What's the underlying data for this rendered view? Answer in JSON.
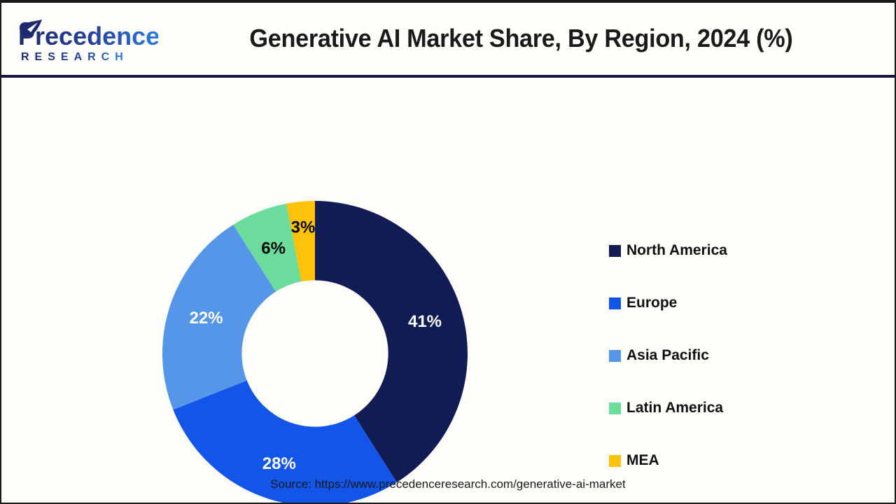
{
  "header": {
    "logo": {
      "brand": "Precedence",
      "sub_brand": "RESEARCH"
    },
    "title": "Generative AI Market Share, By Region, 2024 (%)"
  },
  "chart_data": {
    "type": "pie",
    "subtype": "donut",
    "title": "Generative AI Market Share, By Region, 2024 (%)",
    "unit": "percent",
    "categories": [
      "North America",
      "Europe",
      "Asia Pacific",
      "Latin America",
      "MEA"
    ],
    "values": [
      41,
      28,
      22,
      6,
      3
    ],
    "labels": [
      "41%",
      "28%",
      "22%",
      "6%",
      "3%"
    ],
    "colors": [
      "#111B54",
      "#1355E8",
      "#5596E8",
      "#6BDC9C",
      "#FFC10A"
    ],
    "label_colors": [
      "#FFFFFF",
      "#FFFFFF",
      "#FFFFFF",
      "#000000",
      "#000000"
    ],
    "total": 100,
    "start_angle_deg": 0,
    "direction": "clockwise",
    "inner_radius_ratio": 0.48,
    "label_radius_factors": [
      0.75,
      0.76,
      0.75,
      0.74,
      0.83
    ],
    "legend_position": "right",
    "grid": false
  },
  "footer": {
    "source": "Source: https://www.precedenceresearch.com/generative-ai-market"
  },
  "style": {
    "background": "#FFFEFA",
    "frame_border_color": "#1B1B1B",
    "header_divider_color": "#14143E",
    "title_color": "#1A1A1A",
    "logo_gradient_start": "#1E2A6E",
    "logo_gradient_end": "#2E7DE2"
  }
}
